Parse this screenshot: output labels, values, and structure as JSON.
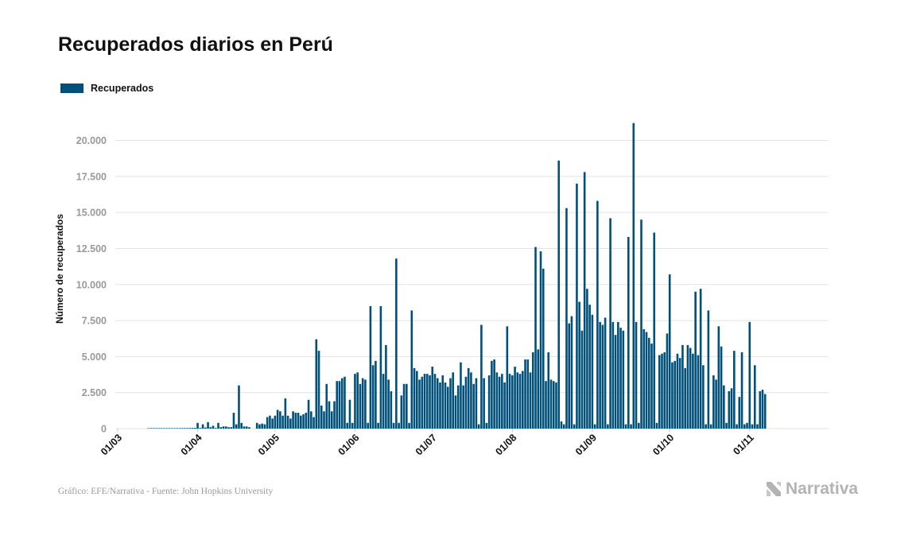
{
  "title": "Recuperados diarios en Perú",
  "legend": {
    "label": "Recuperados"
  },
  "footer": {
    "source": "Gráfico: EFE/Narrativa - Fuente: John Hopkins University",
    "brand": "Narrativa"
  },
  "colors": {
    "bar": "#00507a",
    "grid": "#e3e3e3",
    "tick": "#999999"
  },
  "chart_data": {
    "type": "bar",
    "title": "Recuperados diarios en Perú",
    "xlabel": "",
    "ylabel": "Número de recuperados",
    "ylim": [
      0,
      22500
    ],
    "yticks": [
      0,
      2500,
      5000,
      7500,
      10000,
      12500,
      15000,
      17500,
      20000
    ],
    "ytick_labels": [
      "0",
      "2.500",
      "5.000",
      "7.500",
      "10.000",
      "12.500",
      "15.000",
      "17.500",
      "20.000"
    ],
    "x_start": "2020-03-01",
    "xtick_labels": [
      "01/03",
      "01/04",
      "01/05",
      "01/06",
      "01/07",
      "01/08",
      "01/09",
      "01/10",
      "01/11"
    ],
    "grid": true,
    "legend_position": "top-left",
    "series": [
      {
        "name": "Recuperados",
        "values": [
          0,
          0,
          0,
          0,
          0,
          0,
          0,
          0,
          0,
          0,
          0,
          0,
          5,
          10,
          15,
          20,
          20,
          20,
          25,
          25,
          30,
          30,
          30,
          30,
          35,
          40,
          40,
          40,
          45,
          50,
          55,
          400,
          50,
          300,
          80,
          450,
          100,
          200,
          50,
          400,
          100,
          150,
          150,
          100,
          100,
          1100,
          300,
          3000,
          400,
          150,
          150,
          100,
          0,
          0,
          400,
          300,
          350,
          300,
          800,
          900,
          700,
          900,
          1300,
          1200,
          900,
          2100,
          900,
          700,
          1200,
          1100,
          1100,
          900,
          1000,
          1100,
          2000,
          1200,
          800,
          6200,
          5400,
          1600,
          1200,
          3100,
          1900,
          1200,
          1900,
          3300,
          3300,
          3500,
          3600,
          400,
          2000,
          400,
          3800,
          3900,
          3100,
          3500,
          3400,
          400,
          8500,
          4400,
          4700,
          400,
          8500,
          3800,
          5800,
          3400,
          2600,
          400,
          11800,
          400,
          2300,
          3100,
          3100,
          400,
          8200,
          4200,
          4000,
          3400,
          3600,
          3800,
          3800,
          3700,
          4300,
          3800,
          3500,
          3200,
          3700,
          3200,
          2900,
          3500,
          3900,
          2300,
          3000,
          4600,
          3000,
          3600,
          4200,
          3900,
          3100,
          3500,
          300,
          7200,
          3500,
          400,
          3700,
          4700,
          4800,
          3900,
          3600,
          3800,
          3200,
          7100,
          3800,
          3700,
          4300,
          3900,
          3800,
          4000,
          4800,
          4800,
          3900,
          5300,
          12600,
          5500,
          12300,
          11100,
          3300,
          5300,
          3400,
          3300,
          3200,
          18600,
          500,
          300,
          15300,
          7300,
          7800,
          300,
          17000,
          8800,
          6800,
          17800,
          9700,
          8600,
          7900,
          300,
          15800,
          7400,
          7200,
          7700,
          300,
          14600,
          7400,
          6500,
          7400,
          7000,
          6800,
          300,
          13300,
          300,
          21200,
          7400,
          400,
          14500,
          6900,
          6700,
          6300,
          5900,
          13600,
          400,
          5100,
          5200,
          5300,
          6600,
          10700,
          4600,
          4700,
          5200,
          4900,
          5800,
          4200,
          5800,
          5600,
          5200,
          9500,
          5100,
          9700,
          4400,
          300,
          8200,
          300,
          3700,
          3400,
          7100,
          5700,
          3000,
          400,
          2600,
          2800,
          5400,
          300,
          2200,
          5300,
          300,
          400,
          7400,
          300,
          4400,
          300,
          2600,
          2700,
          2400
        ]
      }
    ]
  }
}
